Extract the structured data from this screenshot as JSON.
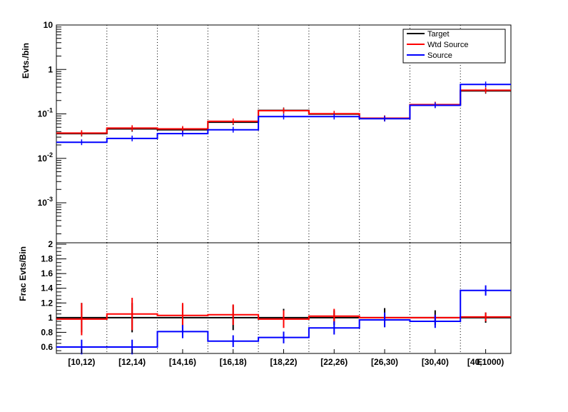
{
  "top_panel": {
    "ylabel": "Evts./bin"
  },
  "ratio_panel": {
    "ylabel": "Frac Evts/Bin"
  },
  "xlabel_partial": "E",
  "legend": [
    {
      "label": "Target",
      "color": "#000000"
    },
    {
      "label": "Wtd Source",
      "color": "#ff0000"
    },
    {
      "label": "Source",
      "color": "#0000ff"
    }
  ],
  "chart_data": [
    {
      "type": "line",
      "subtype": "histogram-step",
      "scale": "log",
      "ylabel": "Evts./bin",
      "ylim": [
        0.00015,
        10
      ],
      "y_tick_labels": [
        "10",
        "1",
        "10^-1",
        "10^-2",
        "10^-3"
      ],
      "categories": [
        "[10,12)",
        "[12,14)",
        "[14,16)",
        "[16,18)",
        "[18,22)",
        "[22,26)",
        "[26,30)",
        "[30,40)",
        "[40,1000)"
      ],
      "grid": "vertical-dotted",
      "legend_position": "top-right",
      "series": [
        {
          "name": "Target",
          "color": "#000000",
          "values": [
            0.036,
            0.046,
            0.044,
            0.065,
            0.12,
            0.099,
            0.079,
            0.16,
            0.33
          ]
        },
        {
          "name": "Wtd Source",
          "color": "#ff0000",
          "values": [
            0.037,
            0.048,
            0.046,
            0.068,
            0.118,
            0.101,
            0.08,
            0.162,
            0.34
          ]
        },
        {
          "name": "Source",
          "color": "#0000ff",
          "values": [
            0.023,
            0.028,
            0.036,
            0.044,
            0.087,
            0.087,
            0.078,
            0.156,
            0.46
          ]
        }
      ]
    },
    {
      "type": "line",
      "subtype": "histogram-step",
      "ylabel": "Frac Evts/Bin",
      "ylim": [
        0.5,
        2
      ],
      "y_ticks": [
        0.6,
        0.8,
        1,
        1.2,
        1.4,
        1.6,
        1.8,
        2
      ],
      "y_tick_labels": [
        "0.6",
        "0.8",
        "1",
        "1.2",
        "1.4",
        "1.6",
        "1.8",
        "2"
      ],
      "categories": [
        "[10,12)",
        "[12,14)",
        "[14,16)",
        "[16,18)",
        "[18,22)",
        "[22,26)",
        "[26,30)",
        "[30,40)",
        "[40,1000)"
      ],
      "series": [
        {
          "name": "Target",
          "color": "#000000",
          "values": [
            1,
            1,
            1,
            1,
            1,
            1,
            1,
            1,
            1
          ],
          "errors": [
            0.2,
            0.2,
            0.18,
            0.17,
            0.12,
            0.1,
            0.13,
            0.1,
            0.07
          ]
        },
        {
          "name": "Wtd Source",
          "color": "#ff0000",
          "values": [
            0.98,
            1.05,
            1.03,
            1.04,
            0.98,
            1.02,
            1.0,
            1.0,
            1.01
          ],
          "errors": [
            0.22,
            0.22,
            0.17,
            0.14,
            0.12,
            0.1,
            0.05,
            0.04,
            0.06
          ]
        },
        {
          "name": "Source",
          "color": "#0000ff",
          "values": [
            0.6,
            0.6,
            0.81,
            0.68,
            0.73,
            0.86,
            0.97,
            0.95,
            1.37
          ],
          "errors": [
            0.1,
            0.1,
            0.09,
            0.08,
            0.08,
            0.09,
            0.1,
            0.09,
            0.07
          ]
        }
      ]
    }
  ]
}
